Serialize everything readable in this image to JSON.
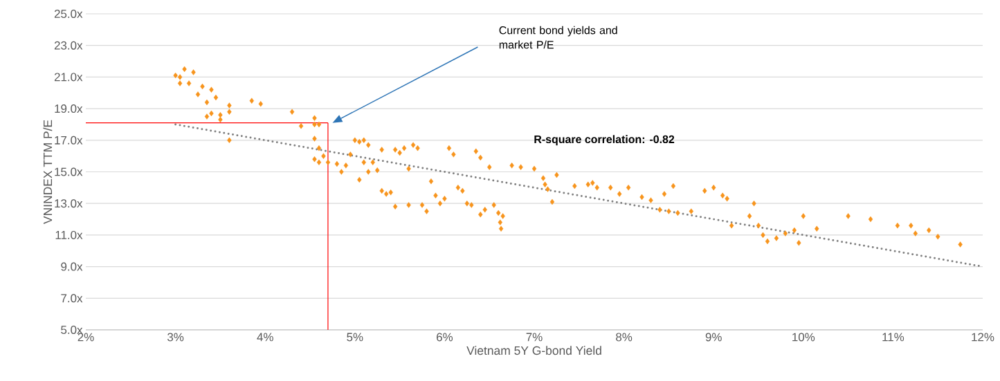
{
  "chart_data": {
    "type": "scatter",
    "xlabel": "Vietnam 5Y G-bond Yield",
    "ylabel": "VNINDEX TTM P/E",
    "xlim": [
      2,
      12
    ],
    "ylim": [
      5,
      25
    ],
    "xticks": [
      {
        "value": 2,
        "label": "2%"
      },
      {
        "value": 3,
        "label": "3%"
      },
      {
        "value": 4,
        "label": "4%"
      },
      {
        "value": 5,
        "label": "5%"
      },
      {
        "value": 6,
        "label": "6%"
      },
      {
        "value": 7,
        "label": "7%"
      },
      {
        "value": 8,
        "label": "8%"
      },
      {
        "value": 9,
        "label": "9%"
      },
      {
        "value": 10,
        "label": "10%"
      },
      {
        "value": 11,
        "label": "11%"
      },
      {
        "value": 12,
        "label": "12%"
      }
    ],
    "yticks": [
      {
        "value": 5,
        "label": "5.0x"
      },
      {
        "value": 7,
        "label": "7.0x"
      },
      {
        "value": 9,
        "label": "9.0x"
      },
      {
        "value": 11,
        "label": "11.0x"
      },
      {
        "value": 13,
        "label": "13.0x"
      },
      {
        "value": 15,
        "label": "15.0x"
      },
      {
        "value": 17,
        "label": "17.0x"
      },
      {
        "value": 19,
        "label": "19.0x"
      },
      {
        "value": 21,
        "label": "21.0x"
      },
      {
        "value": 23,
        "label": "23.0x"
      },
      {
        "value": 25,
        "label": "25.0x"
      }
    ],
    "grid": "y",
    "series": [
      {
        "color": "#f7941d",
        "marker": "diamond",
        "x": [
          3.0,
          3.05,
          3.1,
          3.15,
          3.2,
          3.05,
          3.25,
          3.3,
          3.35,
          3.4,
          3.45,
          3.35,
          3.4,
          3.5,
          3.5,
          3.6,
          3.6,
          3.6,
          3.85,
          3.95,
          4.3,
          4.4,
          4.55,
          4.55,
          4.6,
          4.55,
          4.6,
          4.55,
          4.6,
          4.65,
          4.7,
          4.8,
          4.85,
          4.9,
          4.95,
          5.0,
          5.05,
          5.1,
          5.15,
          5.05,
          5.1,
          5.15,
          5.2,
          5.25,
          5.3,
          5.3,
          5.35,
          5.4,
          5.45,
          5.45,
          5.5,
          5.55,
          5.6,
          5.6,
          5.65,
          5.7,
          5.75,
          5.8,
          5.85,
          5.9,
          5.95,
          6.0,
          6.05,
          6.1,
          6.15,
          6.2,
          6.25,
          6.3,
          6.35,
          6.4,
          6.4,
          6.45,
          6.5,
          6.55,
          6.6,
          6.62,
          6.63,
          6.65,
          6.75,
          6.85,
          7.0,
          7.1,
          7.12,
          7.15,
          7.2,
          7.25,
          7.45,
          7.6,
          7.65,
          7.7,
          7.85,
          7.95,
          8.05,
          8.2,
          8.3,
          8.4,
          8.45,
          8.5,
          8.6,
          8.55,
          8.75,
          8.9,
          9.0,
          9.1,
          9.15,
          9.2,
          9.4,
          9.45,
          9.5,
          9.55,
          9.6,
          9.7,
          9.8,
          9.9,
          9.95,
          10.0,
          10.15,
          10.5,
          10.75,
          11.05,
          11.2,
          11.25,
          11.4,
          11.5,
          11.75
        ],
        "values": [
          21.1,
          20.6,
          21.5,
          20.6,
          21.3,
          21.0,
          19.9,
          20.4,
          19.4,
          20.2,
          19.7,
          18.5,
          18.7,
          18.6,
          18.3,
          19.2,
          18.8,
          17.0,
          19.5,
          19.3,
          18.8,
          17.9,
          18.4,
          18.0,
          18.0,
          17.1,
          16.5,
          15.8,
          15.6,
          16.0,
          15.6,
          15.5,
          15.0,
          15.4,
          16.1,
          17.0,
          16.9,
          17.0,
          16.7,
          14.5,
          15.6,
          15.0,
          15.6,
          15.1,
          16.4,
          13.8,
          13.6,
          13.7,
          12.8,
          16.4,
          16.2,
          16.5,
          15.2,
          12.9,
          16.7,
          16.5,
          12.9,
          12.5,
          14.4,
          13.5,
          13.0,
          13.3,
          16.5,
          16.1,
          14.0,
          13.8,
          13.0,
          12.9,
          16.3,
          15.9,
          12.3,
          12.6,
          15.3,
          12.9,
          12.4,
          11.8,
          11.4,
          12.2,
          15.4,
          15.3,
          15.2,
          14.6,
          14.2,
          13.9,
          13.1,
          14.8,
          14.1,
          14.2,
          14.3,
          14.0,
          14.0,
          13.6,
          14.0,
          13.4,
          13.2,
          12.6,
          13.6,
          12.5,
          12.4,
          14.1,
          12.5,
          13.8,
          14.0,
          13.5,
          13.3,
          11.6,
          12.2,
          13.0,
          11.6,
          11.0,
          10.6,
          10.8,
          11.1,
          11.3,
          10.5,
          12.2,
          11.4,
          12.2,
          12.0,
          11.6,
          11.6,
          11.1,
          11.3,
          10.9,
          10.4
        ]
      },
      {
        "type": "line",
        "color": "#808080",
        "line_style": "dotted",
        "marker": "none",
        "x": [
          3.0,
          12.0
        ],
        "values": [
          18.0,
          9.0
        ]
      }
    ],
    "ref_lines": [
      {
        "axis": "x",
        "value": 4.7,
        "color": "#ff0000"
      },
      {
        "axis": "y",
        "value": 18.1,
        "color": "#ff0000"
      }
    ],
    "annotations": [
      "Current bond yields and market P/E",
      "**R-square correlation: -0.82**"
    ]
  }
}
